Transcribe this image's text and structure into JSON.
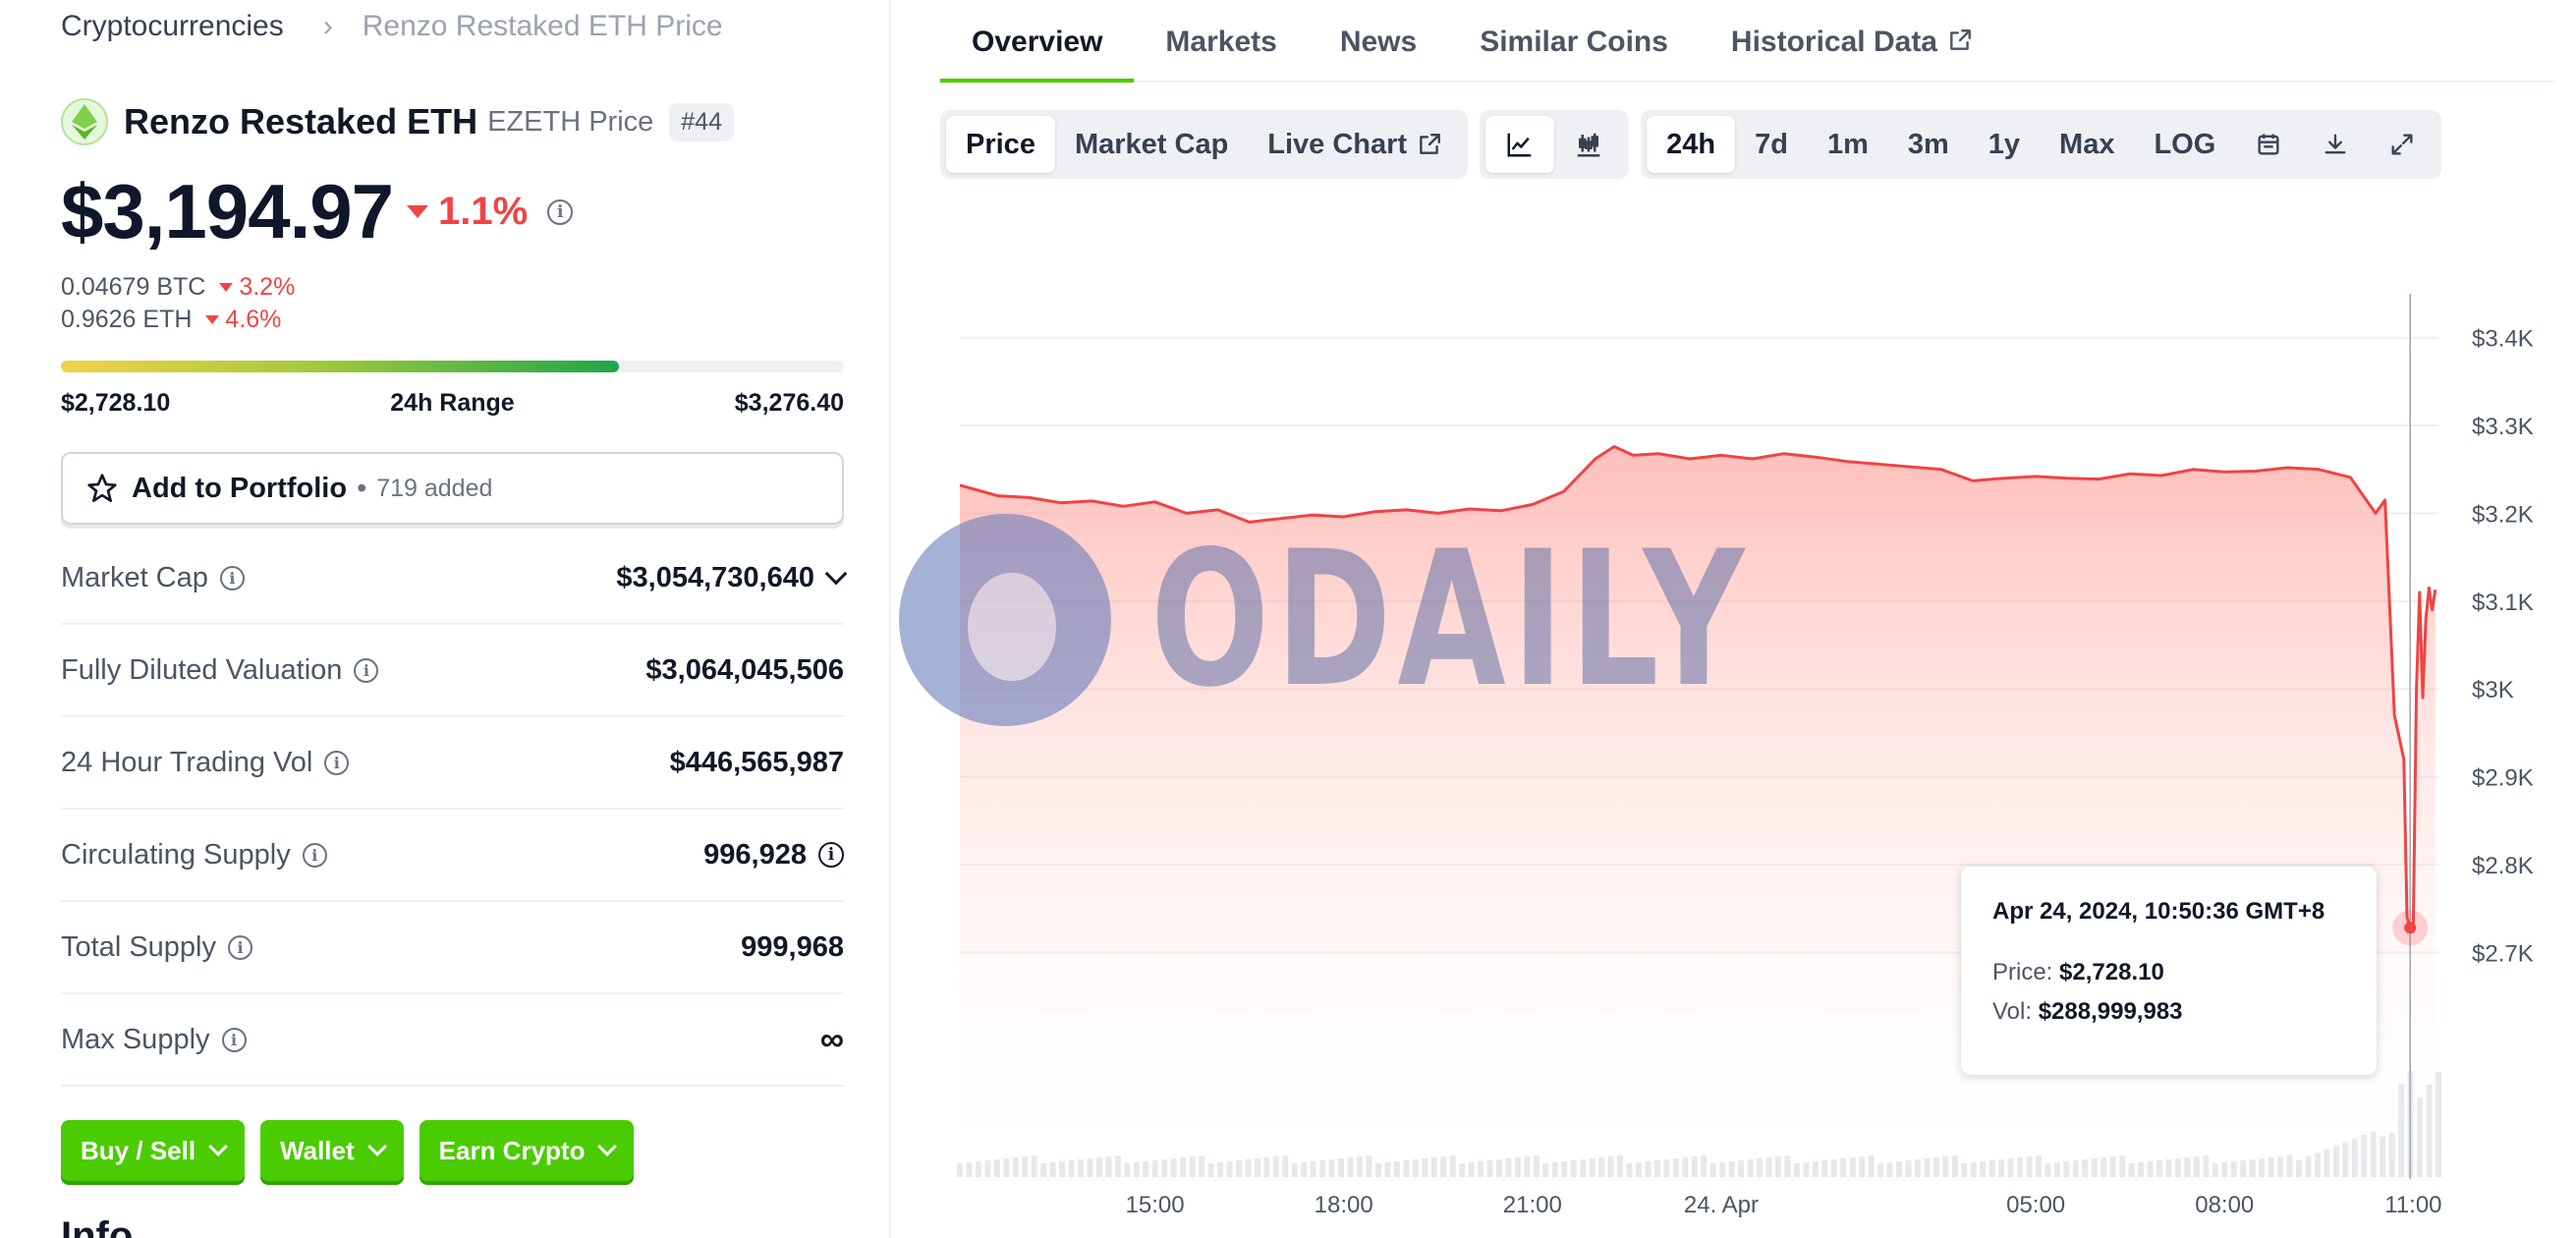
{
  "breadcrumb": {
    "parent": "Cryptocurrencies",
    "separator": "›",
    "current": "Renzo Restaked ETH Price"
  },
  "coin": {
    "name": "Renzo Restaked ETH",
    "symbol_label": "EZETH Price",
    "rank": "#44"
  },
  "price": {
    "value": "$3,194.97",
    "change_24h": "1.1%",
    "direction": "down"
  },
  "conversions": [
    {
      "value": "0.04679 BTC",
      "change": "3.2%"
    },
    {
      "value": "0.9626 ETH",
      "change": "4.6%"
    }
  ],
  "range_24h": {
    "low": "$2,728.10",
    "label": "24h Range",
    "high": "$3,276.40",
    "position_fraction": 0.713
  },
  "portfolio": {
    "label": "Add to Portfolio",
    "separator": "•",
    "added": "719 added"
  },
  "stats": [
    {
      "label": "Market Cap",
      "value": "$3,054,730,640"
    },
    {
      "label": "Fully Diluted Valuation",
      "value": "$3,064,045,506"
    },
    {
      "label": "24 Hour Trading Vol",
      "value": "$446,565,987"
    },
    {
      "label": "Circulating Supply",
      "value": "996,928"
    },
    {
      "label": "Total Supply",
      "value": "999,968"
    },
    {
      "label": "Max Supply",
      "value": "∞"
    }
  ],
  "actions": {
    "buy_sell": "Buy / Sell",
    "wallet": "Wallet",
    "earn": "Earn Crypto"
  },
  "info_heading": "Info",
  "tabs": [
    "Overview",
    "Markets",
    "News",
    "Similar Coins",
    "Historical Data"
  ],
  "toolbar": {
    "chart_types": [
      "Price",
      "Market Cap",
      "Live Chart"
    ],
    "ranges": [
      "24h",
      "7d",
      "1m",
      "3m",
      "1y",
      "Max",
      "LOG"
    ]
  },
  "tooltip": {
    "date": "Apr 24, 2024, 10:50:36 GMT+8",
    "price_label": "Price:",
    "price_value": "$2,728.10",
    "vol_label": "Vol:",
    "vol_value": "$288,999,983"
  },
  "watermark": {
    "text": "ODAILY"
  },
  "colors": {
    "accent": "#4bcc00",
    "negative": "#ef4444",
    "line": "#ef4444"
  },
  "chart_data": {
    "type": "area",
    "ylabel_ticks": [
      "$3.4K",
      "$3.3K",
      "$3.2K",
      "$3.1K",
      "$3K",
      "$2.9K",
      "$2.8K",
      "$2.7K"
    ],
    "ylim": [
      2650,
      3450
    ],
    "xtick_labels": [
      "15:00",
      "18:00",
      "21:00",
      "24. Apr",
      "05:00",
      "08:00",
      "11:00"
    ],
    "xtick_positions_hours": [
      15,
      18,
      21,
      24,
      29,
      32,
      35
    ],
    "xlim_hours": [
      11.9,
      35.4
    ],
    "series": [
      {
        "x_hours": [
          11.9,
          12.5,
          13.0,
          13.5,
          14.0,
          14.5,
          15.0,
          15.5,
          16.0,
          16.5,
          17.0,
          17.5,
          18.0,
          18.5,
          19.0,
          19.5,
          20.0,
          20.5,
          21.0,
          21.5,
          22.0,
          22.3,
          22.6,
          23.0,
          23.5,
          24.0,
          24.5,
          25.0,
          25.5,
          26.0,
          26.5,
          27.0,
          27.5,
          28.0,
          28.5,
          29.0,
          29.5,
          30.0,
          30.5,
          31.0,
          31.5,
          32.0,
          32.5,
          33.0,
          33.5,
          34.0,
          34.4,
          34.55,
          34.7,
          34.85,
          34.9,
          34.95,
          35.0,
          35.05,
          35.1,
          35.15,
          35.2,
          35.25,
          35.3,
          35.35
        ],
        "y_price": [
          3232,
          3220,
          3218,
          3212,
          3214,
          3208,
          3213,
          3200,
          3204,
          3190,
          3194,
          3198,
          3196,
          3202,
          3204,
          3200,
          3205,
          3203,
          3210,
          3225,
          3262,
          3276,
          3266,
          3268,
          3262,
          3266,
          3262,
          3268,
          3264,
          3259,
          3256,
          3253,
          3250,
          3237,
          3240,
          3242,
          3240,
          3239,
          3245,
          3243,
          3250,
          3247,
          3248,
          3252,
          3250,
          3241,
          3200,
          3215,
          2970,
          2920,
          2740,
          2728,
          2732,
          3000,
          3110,
          2990,
          3080,
          3115,
          3090,
          3113
        ]
      }
    ],
    "volume_bars": true,
    "grid": true,
    "crosshair_x_hours": 34.95,
    "highlight_point": {
      "x_hours": 34.95,
      "y_price": 2728.1
    }
  }
}
